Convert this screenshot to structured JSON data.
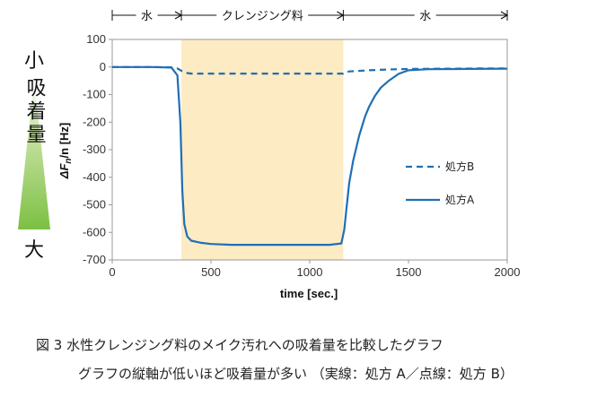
{
  "chart_data": {
    "type": "line",
    "xlabel": "time [sec.]",
    "ylabel": "ΔFn/n [Hz]",
    "xlim": [
      0,
      2000
    ],
    "ylim": [
      -700,
      100
    ],
    "xticks": [
      0,
      500,
      1000,
      1500,
      2000
    ],
    "yticks": [
      100,
      0,
      -100,
      -200,
      -300,
      -400,
      -500,
      -600,
      -700
    ],
    "grid": false,
    "legend_position": "right",
    "highlight_band": {
      "x_start": 350,
      "x_end": 1170,
      "color": "#fdebc3"
    },
    "phases": [
      {
        "label": "水",
        "x_start": 0,
        "x_end": 350
      },
      {
        "label": "クレンジング料",
        "x_start": 350,
        "x_end": 1170
      },
      {
        "label": "水",
        "x_start": 1170,
        "x_end": 2000
      }
    ],
    "series": [
      {
        "name": "処方B",
        "style": "dashed",
        "color": "#1f6fb5",
        "x": [
          0,
          100,
          200,
          300,
          330,
          360,
          380,
          400,
          500,
          700,
          900,
          1100,
          1170,
          1180,
          1200,
          1300,
          1400,
          1500,
          1700,
          1900,
          2000
        ],
        "y": [
          0,
          0,
          0,
          -1,
          -5,
          -18,
          -22,
          -24,
          -24,
          -24,
          -24,
          -24,
          -24,
          -20,
          -16,
          -12,
          -9,
          -7,
          -6,
          -5,
          -5
        ]
      },
      {
        "name": "処方A",
        "style": "solid",
        "color": "#1f6fb5",
        "x": [
          0,
          100,
          200,
          300,
          330,
          345,
          355,
          365,
          380,
          400,
          450,
          500,
          600,
          800,
          1000,
          1100,
          1160,
          1175,
          1185,
          1200,
          1220,
          1250,
          1280,
          1300,
          1330,
          1360,
          1400,
          1450,
          1500,
          1600,
          1800,
          2000
        ],
        "y": [
          0,
          0,
          0,
          -2,
          -30,
          -200,
          -450,
          -570,
          -615,
          -630,
          -638,
          -642,
          -645,
          -645,
          -645,
          -645,
          -640,
          -590,
          -520,
          -420,
          -340,
          -250,
          -180,
          -145,
          -105,
          -75,
          -50,
          -25,
          -12,
          -8,
          -7,
          -6
        ]
      }
    ]
  },
  "side_scale": {
    "top_label": "小",
    "middle_label": "吸着量",
    "bottom_label": "大"
  },
  "caption": {
    "line1": "図 3 水性クレンジング料のメイク汚れへの吸着量を比較したグラフ",
    "line2": "グラフの縦軸が低いほど吸着量が多い （実線：処方 A／点線：処方 B）"
  }
}
